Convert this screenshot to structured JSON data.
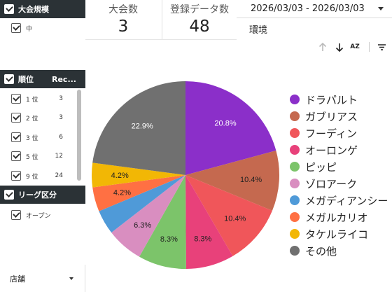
{
  "filters": {
    "tournament_size": {
      "title": "大会規模",
      "items": [
        {
          "label": "中"
        }
      ]
    },
    "rank": {
      "title": "順位",
      "col2": "Rec...",
      "items": [
        {
          "label": "1 位",
          "count": "3"
        },
        {
          "label": "2 位",
          "count": "3"
        },
        {
          "label": "3 位",
          "count": "6"
        },
        {
          "label": "5 位",
          "count": "12"
        },
        {
          "label": "9 位",
          "count": "24"
        }
      ]
    },
    "league": {
      "title": "リーグ区分",
      "items": [
        {
          "label": "オープン"
        }
      ]
    },
    "store": {
      "label": "店舗"
    }
  },
  "stats": {
    "tournaments": {
      "label": "大会数",
      "value": "3"
    },
    "records": {
      "label": "登録データ数",
      "value": "48"
    }
  },
  "date_range": "2026/03/03 - 2026/03/03",
  "environment_label": "環境",
  "toolbar": {
    "sort_az": "AZ"
  },
  "colors": {
    "header_bg": "#2b3236"
  },
  "chart_data": {
    "type": "pie",
    "title": "",
    "legend_position": "right",
    "slices": [
      {
        "name": "ドラパルト",
        "value": 20.8,
        "label": "20.8%",
        "color": "#8b2fc9"
      },
      {
        "name": "ガブリアス",
        "value": 10.4,
        "label": "10.4%",
        "color": "#c5694f"
      },
      {
        "name": "フーディン",
        "value": 10.4,
        "label": "10.4%",
        "color": "#f0565a"
      },
      {
        "name": "オーロンゲ",
        "value": 8.3,
        "label": "8.3%",
        "color": "#e8417a"
      },
      {
        "name": "ピッピ",
        "value": 8.3,
        "label": "8.3%",
        "color": "#7cc46a"
      },
      {
        "name": "ゾロアーク",
        "value": 6.3,
        "label": "6.3%",
        "color": "#d98ec0"
      },
      {
        "name": "メガディアンシー",
        "value": 4.2,
        "label": "",
        "color": "#4f9ad8"
      },
      {
        "name": "メガルカリオ",
        "value": 4.2,
        "label": "4.2%",
        "color": "#ff7043"
      },
      {
        "name": "タケルライコ",
        "value": 4.2,
        "label": "4.2%",
        "color": "#f2b705"
      },
      {
        "name": "その他",
        "value": 22.9,
        "label": "22.9%",
        "color": "#707070"
      }
    ]
  }
}
